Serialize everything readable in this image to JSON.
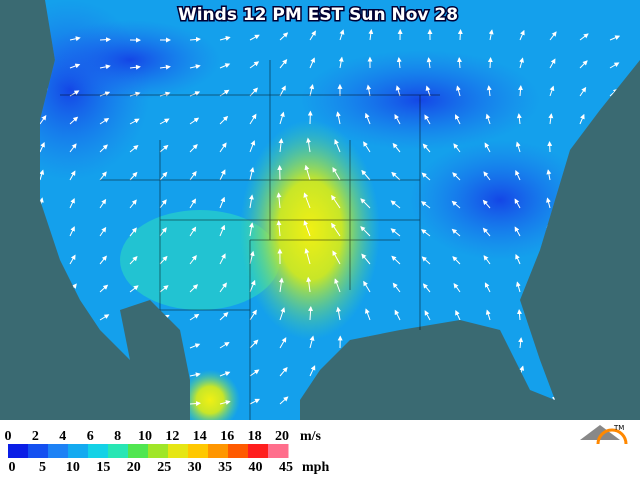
{
  "title": "Winds 12 PM EST Sun Nov 28",
  "legend": {
    "ms_labels": [
      0,
      2,
      4,
      6,
      8,
      10,
      12,
      14,
      16,
      18,
      20
    ],
    "ms_unit": "m/s",
    "mph_labels": [
      0,
      5,
      10,
      15,
      20,
      25,
      30,
      35,
      40,
      45
    ],
    "mph_unit": "mph",
    "colors": [
      "#0a1ee6",
      "#1450f0",
      "#1e82f5",
      "#14aaf0",
      "#14d2e6",
      "#28e6b4",
      "#50e650",
      "#a0e628",
      "#e6e614",
      "#ffc800",
      "#ff9600",
      "#ff5a00",
      "#ff1e1e",
      "#ff6e8c"
    ]
  },
  "logo": "TM"
}
